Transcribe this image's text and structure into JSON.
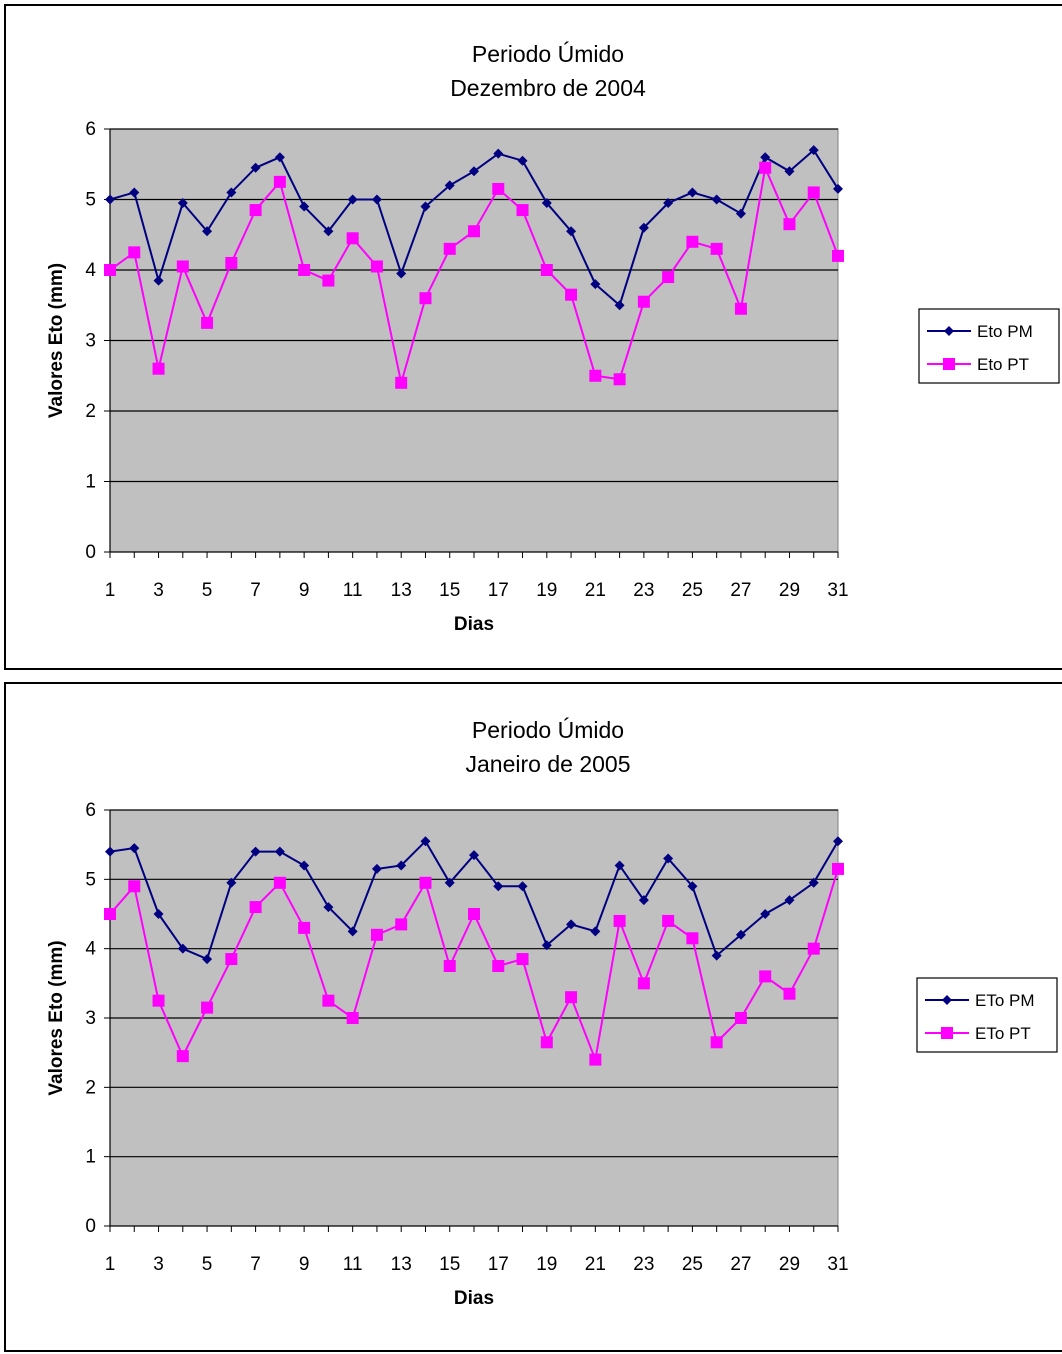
{
  "chart_data": [
    {
      "type": "line",
      "title": "Periodo Úmido",
      "subtitle": "Dezembro de 2004",
      "xlabel": "Dias",
      "ylabel": "Valores Eto (mm)",
      "ylim": [
        0,
        6
      ],
      "yticks": [
        0,
        1,
        2,
        3,
        4,
        5,
        6
      ],
      "xticks": [
        1,
        3,
        5,
        7,
        9,
        11,
        13,
        15,
        17,
        19,
        21,
        23,
        25,
        27,
        29,
        31
      ],
      "grid": true,
      "legend_position": "right",
      "plot_background": "#c0c0c0",
      "x": [
        1,
        2,
        3,
        4,
        5,
        6,
        7,
        8,
        9,
        10,
        11,
        12,
        13,
        14,
        15,
        16,
        17,
        18,
        19,
        20,
        21,
        22,
        23,
        24,
        25,
        26,
        27,
        28,
        29,
        30,
        31
      ],
      "series": [
        {
          "name": "Eto PM",
          "color": "#000080",
          "marker": "diamond",
          "values": [
            5.0,
            5.1,
            3.85,
            4.95,
            4.55,
            5.1,
            5.45,
            5.6,
            4.9,
            4.55,
            5.0,
            5.0,
            3.95,
            4.9,
            5.2,
            5.4,
            5.65,
            5.55,
            4.95,
            4.55,
            3.8,
            3.5,
            4.6,
            4.95,
            5.1,
            5.0,
            4.8,
            5.6,
            5.4,
            5.7,
            5.15
          ]
        },
        {
          "name": "Eto PT",
          "color": "#ff00ff",
          "marker": "square",
          "values": [
            4.0,
            4.25,
            2.6,
            4.05,
            3.25,
            4.1,
            4.85,
            5.25,
            4.0,
            3.85,
            4.45,
            4.05,
            2.4,
            3.6,
            4.3,
            4.55,
            5.15,
            4.85,
            4.0,
            3.65,
            2.5,
            2.45,
            3.55,
            3.9,
            4.4,
            4.3,
            3.45,
            5.45,
            4.65,
            5.1,
            4.2
          ]
        }
      ]
    },
    {
      "type": "line",
      "title": "Periodo Úmido",
      "subtitle": "Janeiro de 2005",
      "xlabel": "Dias",
      "ylabel": "Valores Eto (mm)",
      "ylim": [
        0,
        6
      ],
      "yticks": [
        0,
        1,
        2,
        3,
        4,
        5,
        6
      ],
      "xticks": [
        1,
        3,
        5,
        7,
        9,
        11,
        13,
        15,
        17,
        19,
        21,
        23,
        25,
        27,
        29,
        31
      ],
      "grid": true,
      "legend_position": "right",
      "plot_background": "#c0c0c0",
      "x": [
        1,
        2,
        3,
        4,
        5,
        6,
        7,
        8,
        9,
        10,
        11,
        12,
        13,
        14,
        15,
        16,
        17,
        18,
        19,
        20,
        21,
        22,
        23,
        24,
        25,
        26,
        27,
        28,
        29,
        30,
        31
      ],
      "series": [
        {
          "name": "ETo PM",
          "color": "#000080",
          "marker": "diamond",
          "values": [
            5.4,
            5.45,
            4.5,
            4.0,
            3.85,
            4.95,
            5.4,
            5.4,
            5.2,
            4.6,
            4.25,
            5.15,
            5.2,
            5.55,
            4.95,
            5.35,
            4.9,
            4.9,
            4.05,
            4.35,
            4.25,
            5.2,
            4.7,
            5.3,
            4.9,
            3.9,
            4.2,
            4.5,
            4.7,
            4.95,
            5.55
          ]
        },
        {
          "name": "ETo PT",
          "color": "#ff00ff",
          "marker": "square",
          "values": [
            4.5,
            4.9,
            3.25,
            2.45,
            3.15,
            3.85,
            4.6,
            4.95,
            4.3,
            3.25,
            3.0,
            4.2,
            4.35,
            4.95,
            3.75,
            4.5,
            3.75,
            3.85,
            2.65,
            3.3,
            2.4,
            4.4,
            3.5,
            4.4,
            4.15,
            2.65,
            3.0,
            3.6,
            3.35,
            4.0,
            5.15
          ]
        }
      ]
    }
  ]
}
